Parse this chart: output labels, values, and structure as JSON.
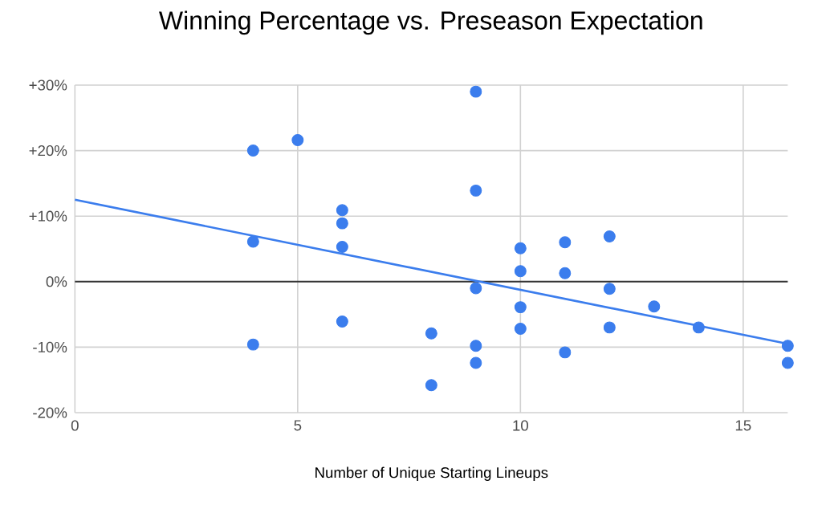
{
  "chart_data": {
    "type": "scatter",
    "title": "Winning Percentage vs. Preseason Expectation",
    "xlabel": "Number of Unique Starting Lineups",
    "xlim": [
      0,
      16
    ],
    "xticks": [
      0,
      5,
      10,
      15
    ],
    "ylim": [
      -20,
      30
    ],
    "yticks": [
      {
        "value": -20,
        "label": "-20%"
      },
      {
        "value": -10,
        "label": "-10%"
      },
      {
        "value": 0,
        "label": "0%"
      },
      {
        "value": 10,
        "label": "+10%"
      },
      {
        "value": 20,
        "label": "+20%"
      },
      {
        "value": 30,
        "label": "+30%"
      }
    ],
    "grid": true,
    "marker": "circle",
    "ref_lines": [
      {
        "axis": "y",
        "value": 0,
        "color": "#333333"
      }
    ],
    "series": [
      {
        "color": "#3b7ded",
        "x": [
          4,
          5,
          4,
          4,
          6,
          6,
          6,
          6,
          8,
          8,
          9,
          9,
          9,
          9,
          9,
          10,
          10,
          10,
          10,
          11,
          11,
          11,
          12,
          12,
          12,
          13,
          14,
          16,
          16
        ],
        "values": [
          20,
          21.6,
          6.1,
          -9.6,
          10.9,
          8.9,
          5.3,
          -6.1,
          -7.9,
          -15.8,
          29,
          13.9,
          -1,
          -9.8,
          -12.4,
          5.1,
          1.6,
          -3.9,
          -7.2,
          6,
          1.3,
          -10.8,
          6.9,
          -1.1,
          -7,
          -3.8,
          -7,
          -9.8,
          -12.4
        ]
      },
      {
        "type": "line",
        "color": "#3b7ded",
        "marker": "none",
        "x": [
          0,
          16
        ],
        "values": [
          12.5,
          -9.5
        ]
      }
    ]
  }
}
